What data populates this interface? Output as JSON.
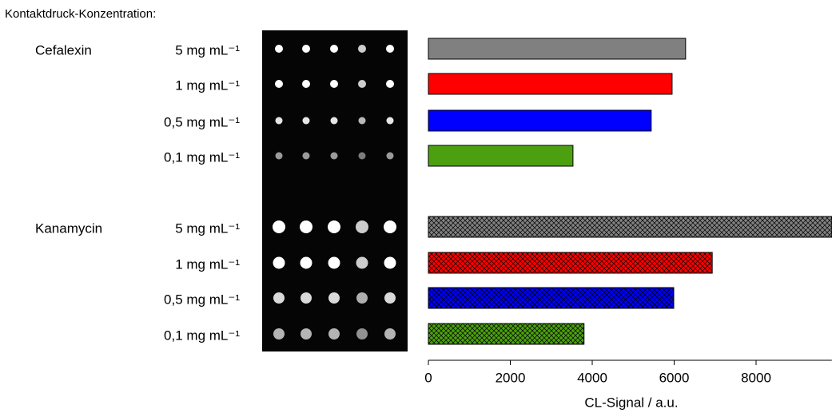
{
  "chart_data": {
    "type": "bar",
    "orientation": "horizontal",
    "title": "Kontaktdruck-Konzentration:",
    "categories": [
      "5 mg mL⁻¹",
      "1 mg mL⁻¹",
      "0,5 mg mL⁻¹",
      "0,1 mg mL⁻¹"
    ],
    "colors": [
      "#808080",
      "#ff0000",
      "#0000ff",
      "#4ca010"
    ],
    "series": [
      {
        "name": "Cefalexin",
        "hatch": false,
        "values": [
          6280,
          5950,
          5440,
          3530
        ]
      },
      {
        "name": "Kanamycin",
        "hatch": true,
        "values": [
          9850,
          6930,
          5990,
          3800
        ]
      }
    ],
    "xlabel": "CL-Signal / a.u.",
    "xlim": [
      0,
      9850
    ],
    "xticks": [
      0,
      2000,
      4000,
      6000,
      8000
    ]
  }
}
